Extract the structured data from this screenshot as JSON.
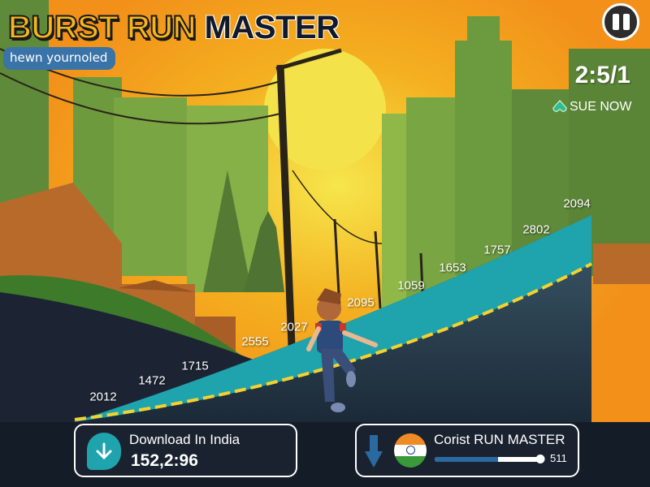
{
  "header": {
    "title_part1": "BURST RUN",
    "title_part2": "MASTER",
    "subtitle": "hewn yournoled"
  },
  "hud": {
    "pause_icon": "pause-icon",
    "timer": "2:5/1",
    "action_label": "SUE NOW",
    "action_icon": "spade-icon"
  },
  "track_labels": [
    "2012",
    "1472",
    "1715",
    "2555",
    "2027",
    "2095",
    "1059",
    "1653",
    "1757",
    "2802",
    "2094"
  ],
  "bottom": {
    "download_panel": {
      "icon": "download-arrow-icon",
      "label": "Download In India",
      "value": "152,2:96"
    },
    "master_panel": {
      "icon": "down-arrow-icon",
      "flag": "india-flag",
      "label": "Corist RUN MASTER",
      "progress_percent": 100,
      "fill_percent": 60,
      "value": "511"
    }
  },
  "colors": {
    "sky": "#f39a1c",
    "sun": "#f3e24a",
    "road": "#1fa3ac",
    "accent_yellow": "#f7b51d",
    "panel_bg": "#1a2230",
    "subtitle_bg": "#3a73a8"
  }
}
